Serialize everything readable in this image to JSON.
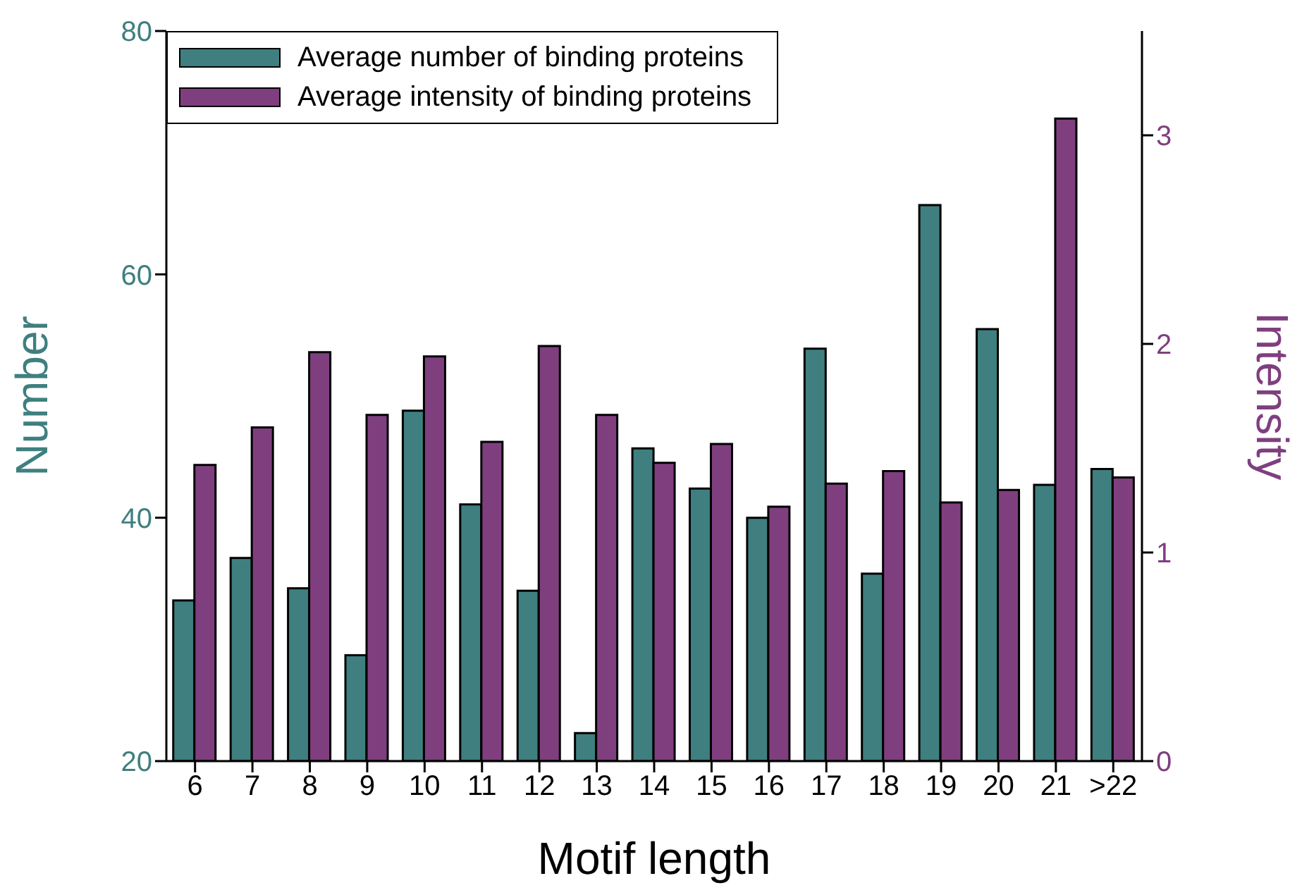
{
  "chart_data": {
    "type": "bar",
    "xlabel": "Motif length",
    "ylabel": "Number",
    "y2label": "Intensity",
    "categories": [
      "6",
      "7",
      "8",
      "9",
      "10",
      "11",
      "12",
      "13",
      "14",
      "15",
      "16",
      "17",
      "18",
      "19",
      "20",
      "21",
      ">22"
    ],
    "series": [
      {
        "name": "Average number of binding proteins",
        "color": "#3f7f7f",
        "values": [
          33.2,
          36.7,
          34.2,
          28.7,
          48.8,
          41.1,
          34.0,
          22.3,
          45.7,
          42.4,
          40.0,
          53.9,
          35.4,
          65.7,
          55.5,
          42.7,
          44.0
        ]
      },
      {
        "name": "Average intensity of binding proteins",
        "color": "#7f3f7f",
        "axis": "y2",
        "values": [
          1.42,
          1.6,
          1.96,
          1.66,
          1.94,
          1.53,
          1.99,
          1.66,
          1.43,
          1.52,
          1.22,
          1.33,
          1.39,
          1.24,
          1.3,
          3.08,
          1.36
        ]
      }
    ],
    "ylim": [
      20,
      80
    ],
    "yticks": [
      20,
      40,
      60,
      80
    ],
    "y2lim": [
      0,
      3.5
    ],
    "y2ticks": [
      0,
      1,
      2,
      3
    ],
    "legend": "top left"
  }
}
